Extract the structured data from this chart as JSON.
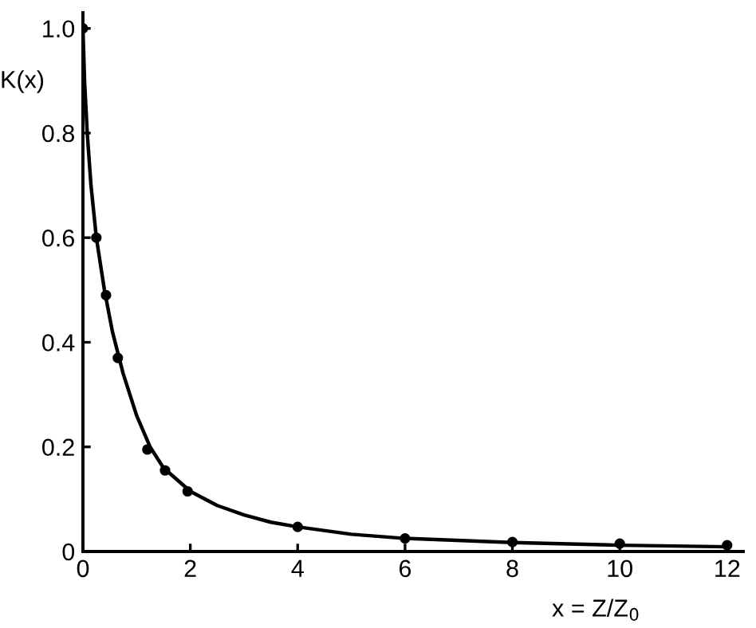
{
  "chart_data": {
    "type": "line",
    "xlabel": "x = Z/Z$_{0}$",
    "ylabel": "K(x)",
    "xlim": [
      0,
      12.3
    ],
    "ylim": [
      0,
      1.03
    ],
    "xticks": [
      0,
      2,
      4,
      6,
      8,
      10,
      12
    ],
    "yticks": [
      0,
      0.2,
      0.4,
      0.6,
      0.8,
      {
        "value": 1.0,
        "label": "1.0"
      }
    ],
    "grid": false,
    "series": [
      {
        "color": "#000000",
        "marker": "none",
        "x": [
          0,
          0.03,
          0.08,
          0.15,
          0.25,
          0.4,
          0.55,
          0.75,
          1,
          1.25,
          1.5,
          2,
          2.5,
          3,
          3.5,
          4,
          5,
          6,
          8,
          10,
          12
        ],
        "values": [
          1.0,
          0.9,
          0.8,
          0.7,
          0.6,
          0.5,
          0.42,
          0.34,
          0.26,
          0.2,
          0.16,
          0.115,
          0.088,
          0.07,
          0.056,
          0.047,
          0.033,
          0.025,
          0.017,
          0.012,
          0.009
        ]
      },
      {
        "type": "scatter",
        "color": "#000000",
        "marker": "circle",
        "x": [
          0,
          0.25,
          0.43,
          0.65,
          1.2,
          1.53,
          1.95,
          4,
          6,
          8,
          10,
          12
        ],
        "values": [
          1.0,
          0.6,
          0.49,
          0.37,
          0.195,
          0.155,
          0.115,
          0.047,
          0.025,
          0.018,
          0.015,
          0.012
        ]
      }
    ]
  }
}
